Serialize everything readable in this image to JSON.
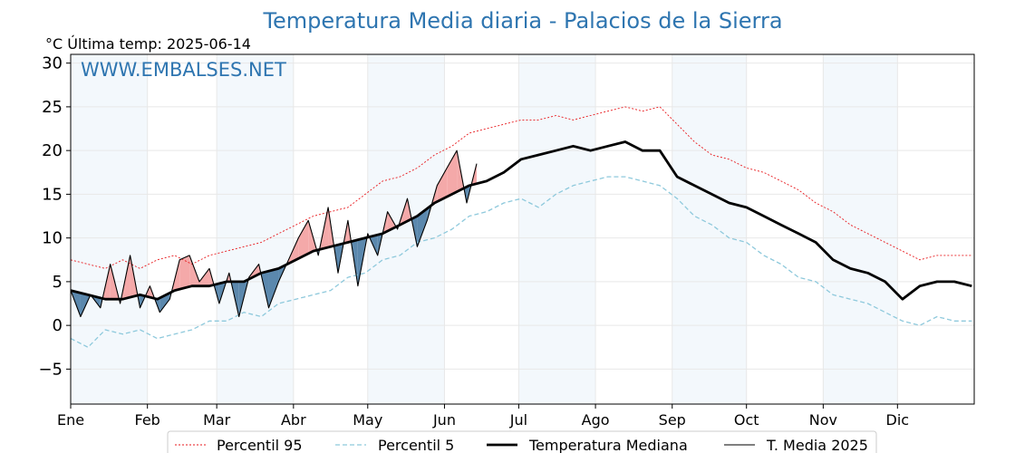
{
  "title": "Temperatura Media diaria - Palacios de la Sierra",
  "subtitle": "°C   Última temp: 2025-06-14",
  "watermark": "WWW.EMBALSES.NET",
  "colors": {
    "title": "#2e75b0",
    "p95": "#e8191d",
    "p5": "#8ec9dc",
    "median": "#000000",
    "year": "#000000",
    "above_fill": "#f4a9a9",
    "below_fill": "#5b88ad",
    "band": "#f3f8fc"
  },
  "legend": [
    {
      "key": "p95",
      "label": "Percentil 95"
    },
    {
      "key": "p5",
      "label": "Percentil 5"
    },
    {
      "key": "median",
      "label": "Temperatura Mediana"
    },
    {
      "key": "year",
      "label": "T. Media 2025"
    }
  ],
  "chart_data": {
    "type": "line",
    "title": "Temperatura Media diaria - Palacios de la Sierra",
    "ylabel": "°C",
    "ylim": [
      -9,
      31
    ],
    "yticks": [
      30,
      25,
      20,
      15,
      10,
      5,
      0,
      -5
    ],
    "ytick_labels": [
      "30",
      "25",
      "20",
      "15",
      "10",
      "5",
      "0",
      "−5"
    ],
    "xlim": [
      1,
      366
    ],
    "months": [
      {
        "label": "Ene",
        "day": 1
      },
      {
        "label": "Feb",
        "day": 32
      },
      {
        "label": "Mar",
        "day": 60
      },
      {
        "label": "Abr",
        "day": 91
      },
      {
        "label": "May",
        "day": 121
      },
      {
        "label": "Jun",
        "day": 152
      },
      {
        "label": "Jul",
        "day": 182
      },
      {
        "label": "Ago",
        "day": 213
      },
      {
        "label": "Sep",
        "day": 244
      },
      {
        "label": "Oct",
        "day": 274
      },
      {
        "label": "Nov",
        "day": 305
      },
      {
        "label": "Dic",
        "day": 335
      }
    ],
    "shaded_months": [
      "Ene",
      "Mar",
      "May",
      "Jul",
      "Sep",
      "Nov"
    ],
    "grid": true,
    "legend_position": "bottom",
    "series": [
      {
        "name": "Percentil 95",
        "key": "p95",
        "style": "dotted",
        "x": [
          1,
          8,
          15,
          22,
          29,
          36,
          43,
          50,
          57,
          64,
          71,
          78,
          85,
          92,
          99,
          106,
          113,
          120,
          127,
          134,
          141,
          148,
          155,
          162,
          169,
          176,
          183,
          190,
          197,
          204,
          211,
          218,
          225,
          232,
          239,
          246,
          253,
          260,
          267,
          274,
          281,
          288,
          295,
          302,
          309,
          316,
          323,
          330,
          337,
          344,
          351,
          358,
          365
        ],
        "y": [
          7.5,
          7.0,
          6.5,
          7.5,
          6.5,
          7.5,
          8.0,
          7.0,
          8.0,
          8.5,
          9.0,
          9.5,
          10.5,
          11.5,
          12.5,
          13.0,
          13.5,
          15.0,
          16.5,
          17.0,
          18.0,
          19.5,
          20.5,
          22.0,
          22.5,
          23.0,
          23.5,
          23.5,
          24.0,
          23.5,
          24.0,
          24.5,
          25.0,
          24.5,
          25.0,
          23.0,
          21.0,
          19.5,
          19.0,
          18.0,
          17.5,
          16.5,
          15.5,
          14.0,
          13.0,
          11.5,
          10.5,
          9.5,
          8.5,
          7.5,
          8.0,
          8.0,
          8.0
        ]
      },
      {
        "name": "Percentil 5",
        "key": "p5",
        "style": "dashed",
        "x": [
          1,
          8,
          15,
          22,
          29,
          36,
          43,
          50,
          57,
          64,
          71,
          78,
          85,
          92,
          99,
          106,
          113,
          120,
          127,
          134,
          141,
          148,
          155,
          162,
          169,
          176,
          183,
          190,
          197,
          204,
          211,
          218,
          225,
          232,
          239,
          246,
          253,
          260,
          267,
          274,
          281,
          288,
          295,
          302,
          309,
          316,
          323,
          330,
          337,
          344,
          351,
          358,
          365
        ],
        "y": [
          -1.5,
          -2.5,
          -0.5,
          -1.0,
          -0.5,
          -1.5,
          -1.0,
          -0.5,
          0.5,
          0.5,
          1.5,
          1.0,
          2.5,
          3.0,
          3.5,
          4.0,
          5.5,
          6.0,
          7.5,
          8.0,
          9.5,
          10.0,
          11.0,
          12.5,
          13.0,
          14.0,
          14.5,
          13.5,
          15.0,
          16.0,
          16.5,
          17.0,
          17.0,
          16.5,
          16.0,
          14.5,
          12.5,
          11.5,
          10.0,
          9.5,
          8.0,
          7.0,
          5.5,
          5.0,
          3.5,
          3.0,
          2.5,
          1.5,
          0.5,
          0.0,
          1.0,
          0.5,
          0.5
        ]
      },
      {
        "name": "Temperatura Mediana",
        "key": "median",
        "style": "solid-thick",
        "x": [
          1,
          8,
          15,
          22,
          29,
          36,
          43,
          50,
          57,
          64,
          71,
          78,
          85,
          92,
          99,
          106,
          113,
          120,
          127,
          134,
          141,
          148,
          155,
          162,
          169,
          176,
          183,
          190,
          197,
          204,
          211,
          218,
          225,
          232,
          239,
          246,
          253,
          260,
          267,
          274,
          281,
          288,
          295,
          302,
          309,
          316,
          323,
          330,
          337,
          344,
          351,
          358,
          365
        ],
        "y": [
          4.0,
          3.5,
          3.0,
          3.0,
          3.5,
          3.0,
          4.0,
          4.5,
          4.5,
          5.0,
          5.0,
          6.0,
          6.5,
          7.5,
          8.5,
          9.0,
          9.5,
          10.0,
          10.5,
          11.5,
          12.5,
          14.0,
          15.0,
          16.0,
          16.5,
          17.5,
          19.0,
          19.5,
          20.0,
          20.5,
          20.0,
          20.5,
          21.0,
          20.0,
          20.0,
          17.0,
          16.0,
          15.0,
          14.0,
          13.5,
          12.5,
          11.5,
          10.5,
          9.5,
          7.5,
          6.5,
          6.0,
          5.0,
          3.0,
          4.5,
          5.0,
          5.0,
          4.5
        ]
      },
      {
        "name": "T. Media 2025",
        "key": "year",
        "style": "solid",
        "x": [
          1,
          5,
          9,
          13,
          17,
          21,
          25,
          29,
          33,
          37,
          41,
          45,
          49,
          53,
          57,
          61,
          65,
          69,
          73,
          77,
          81,
          85,
          89,
          93,
          97,
          101,
          105,
          109,
          113,
          117,
          121,
          125,
          129,
          133,
          137,
          141,
          145,
          149,
          153,
          157,
          161,
          165
        ],
        "y": [
          4.0,
          1.0,
          3.5,
          2.0,
          7.0,
          2.5,
          8.0,
          2.0,
          4.5,
          1.5,
          3.0,
          7.5,
          8.0,
          5.0,
          6.5,
          2.5,
          6.0,
          1.0,
          5.5,
          7.0,
          2.0,
          5.0,
          7.5,
          10.0,
          12.0,
          8.0,
          13.5,
          6.0,
          12.0,
          4.5,
          10.5,
          8.0,
          13.0,
          11.0,
          14.5,
          9.0,
          12.0,
          16.0,
          18.0,
          20.0,
          14.0,
          18.5
        ]
      }
    ]
  }
}
